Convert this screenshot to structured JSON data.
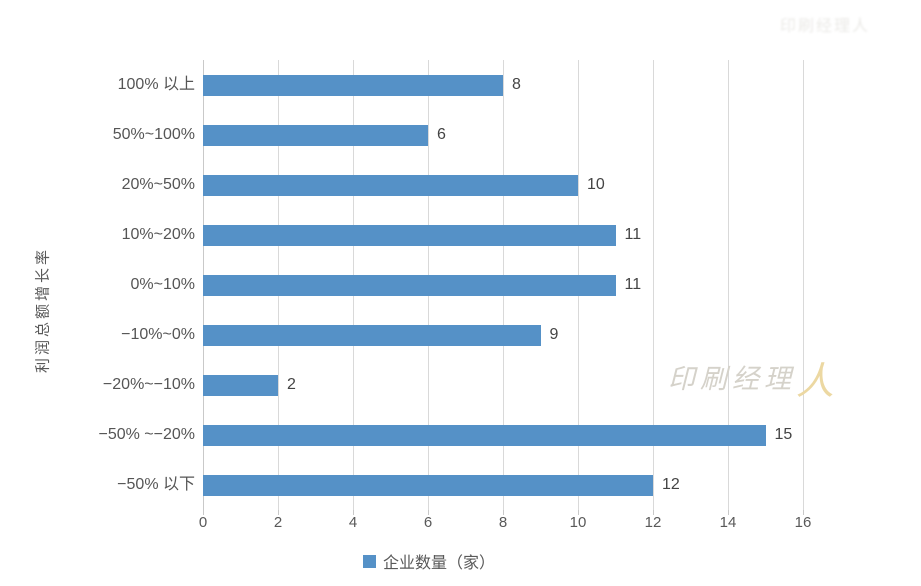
{
  "chart_data": {
    "type": "bar",
    "orientation": "horizontal",
    "title": "",
    "ylabel": "利润总额增长率",
    "xlabel": "",
    "legend": "企业数量（家）",
    "legend_position": "bottom",
    "grid": true,
    "xlim": [
      0,
      16
    ],
    "xticks": [
      0,
      2,
      4,
      6,
      8,
      10,
      12,
      14,
      16
    ],
    "categories": [
      "100% 以上",
      "50%~100%",
      "20%~50%",
      "10%~20%",
      "0%~10%",
      "−10%~0%",
      "−20%~−10%",
      "−50% ~−20%",
      "−50% 以下"
    ],
    "values": [
      8,
      6,
      10,
      11,
      11,
      9,
      2,
      15,
      12
    ],
    "bar_color": "#5591c7",
    "gridline_color": "#d9d9d9",
    "text_color": "#595959"
  },
  "watermark": {
    "gray_part": "印刷经理",
    "gold_part": "人",
    "faint_corner_text": "印刷经理人"
  }
}
